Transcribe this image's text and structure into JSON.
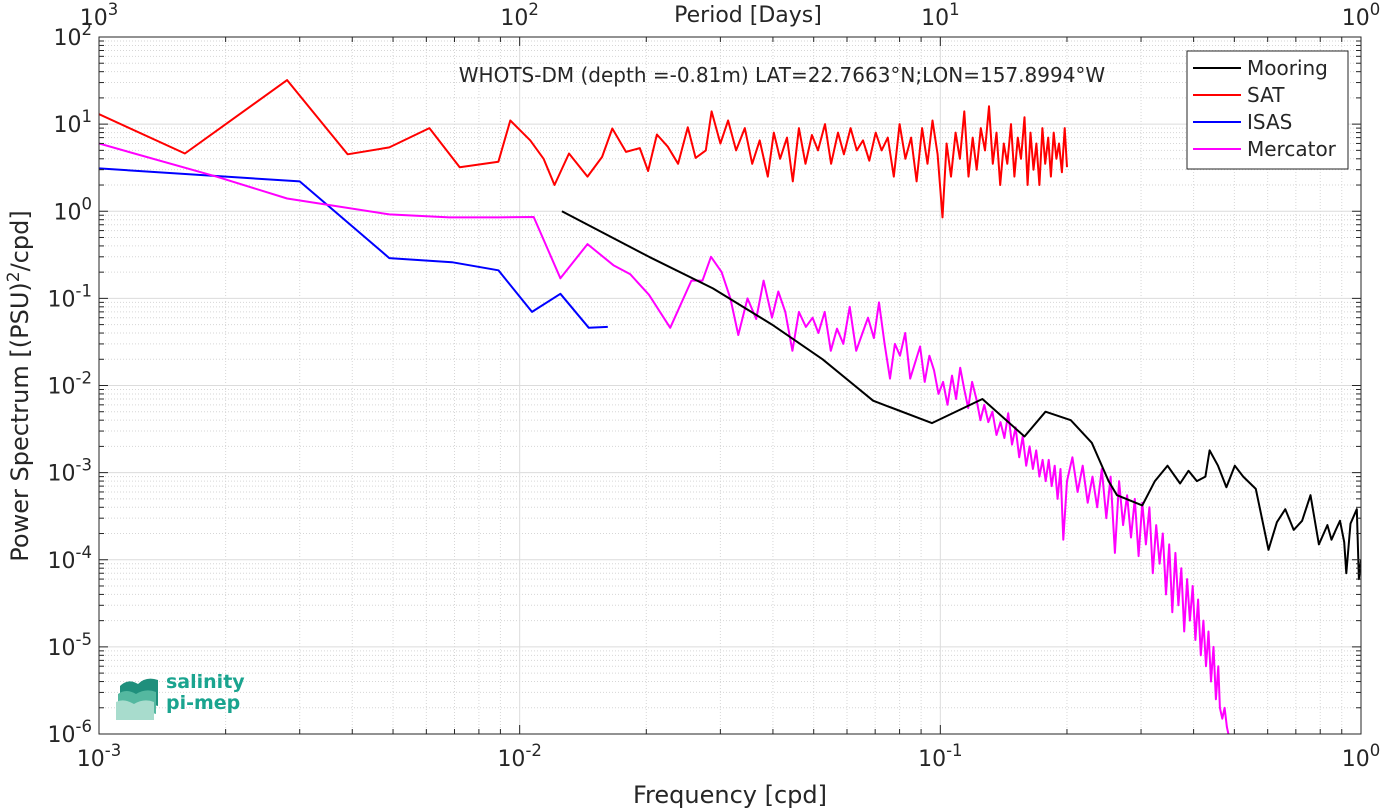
{
  "chart_data": {
    "type": "line",
    "title": "WHOTS-DM (depth =-0.81m) LAT=22.7663°N;LON=157.8994°W",
    "xlabel": "Frequency [cpd]",
    "x2label": "Period [Days]",
    "ylabel": "Power Spectrum [(PSU)²/cpd]",
    "xscale": "log",
    "yscale": "log",
    "xlim": [
      0.001,
      1
    ],
    "ylim": [
      1e-06,
      100
    ],
    "grid": true,
    "legend_position": "top-right",
    "xticks": [
      {
        "base": "10",
        "exp": "-3"
      },
      {
        "base": "10",
        "exp": "-2"
      },
      {
        "base": "10",
        "exp": "-1"
      },
      {
        "base": "10",
        "exp": "0"
      }
    ],
    "x2ticks": [
      {
        "base": "10",
        "exp": "3"
      },
      {
        "base": "10",
        "exp": "2"
      },
      {
        "base": "10",
        "exp": "1"
      },
      {
        "base": "10",
        "exp": "0"
      }
    ],
    "yticks": [
      {
        "base": "10",
        "exp": "-6"
      },
      {
        "base": "10",
        "exp": "-5"
      },
      {
        "base": "10",
        "exp": "-4"
      },
      {
        "base": "10",
        "exp": "-3"
      },
      {
        "base": "10",
        "exp": "-2"
      },
      {
        "base": "10",
        "exp": "-1"
      },
      {
        "base": "10",
        "exp": "0"
      },
      {
        "base": "10",
        "exp": "1"
      },
      {
        "base": "10",
        "exp": "2"
      }
    ],
    "series": [
      {
        "name": "Mooring",
        "color": "#000000",
        "points": [
          [
            0.0126,
            1.0
          ],
          [
            0.0203,
            0.3
          ],
          [
            0.0288,
            0.13
          ],
          [
            0.0398,
            0.05
          ],
          [
            0.0525,
            0.02
          ],
          [
            0.0692,
            0.0067
          ],
          [
            0.0955,
            0.0037
          ],
          [
            0.1259,
            0.007
          ],
          [
            0.1585,
            0.0026
          ],
          [
            0.1778,
            0.005
          ],
          [
            0.2042,
            0.004
          ],
          [
            0.2291,
            0.0022
          ],
          [
            0.2512,
            0.0008
          ],
          [
            0.263,
            0.00055
          ],
          [
            0.302,
            0.00042
          ],
          [
            0.3236,
            0.0008
          ],
          [
            0.3467,
            0.0012
          ],
          [
            0.3715,
            0.00075
          ],
          [
            0.389,
            0.00105
          ],
          [
            0.4074,
            0.0008
          ],
          [
            0.4266,
            0.0009
          ],
          [
            0.4365,
            0.0018
          ],
          [
            0.4571,
            0.0012
          ],
          [
            0.4786,
            0.00068
          ],
          [
            0.5012,
            0.0012
          ],
          [
            0.5248,
            0.0009
          ],
          [
            0.5623,
            0.00065
          ],
          [
            0.6026,
            0.00013
          ],
          [
            0.631,
            0.00027
          ],
          [
            0.6607,
            0.00038
          ],
          [
            0.6918,
            0.00022
          ],
          [
            0.7244,
            0.00028
          ],
          [
            0.7586,
            0.00055
          ],
          [
            0.7943,
            0.00015
          ],
          [
            0.8318,
            0.00025
          ],
          [
            0.8511,
            0.00017
          ],
          [
            0.871,
            0.00022
          ],
          [
            0.8913,
            0.00028
          ],
          [
            0.912,
            0.00016
          ],
          [
            0.9226,
            7e-05
          ],
          [
            0.9441,
            0.00026
          ],
          [
            0.9772,
            0.00038
          ],
          [
            0.9886,
            6e-05
          ],
          [
            1.0,
            0.0001
          ]
        ]
      },
      {
        "name": "SAT",
        "color": "#ff0000",
        "points": [
          [
            0.001,
            13
          ],
          [
            0.0016,
            4.6
          ],
          [
            0.0028,
            32
          ],
          [
            0.0039,
            4.5
          ],
          [
            0.0049,
            5.4
          ],
          [
            0.0061,
            9
          ],
          [
            0.0072,
            3.2
          ],
          [
            0.0089,
            3.7
          ],
          [
            0.0095,
            11
          ],
          [
            0.0106,
            6.5
          ],
          [
            0.0114,
            4
          ],
          [
            0.0121,
            2.0
          ],
          [
            0.0131,
            4.6
          ],
          [
            0.0145,
            2.5
          ],
          [
            0.0157,
            4.2
          ],
          [
            0.0166,
            8.9
          ],
          [
            0.0179,
            4.8
          ],
          [
            0.0193,
            5.3
          ],
          [
            0.0202,
            2.9
          ],
          [
            0.0212,
            7.6
          ],
          [
            0.0225,
            5.5
          ],
          [
            0.0238,
            3.5
          ],
          [
            0.0251,
            9.2
          ],
          [
            0.0262,
            4.1
          ],
          [
            0.0277,
            5
          ],
          [
            0.0286,
            14
          ],
          [
            0.03,
            6
          ],
          [
            0.0313,
            11
          ],
          [
            0.0327,
            5
          ],
          [
            0.0343,
            9
          ],
          [
            0.0357,
            3.5
          ],
          [
            0.0372,
            6.5
          ],
          [
            0.0389,
            2.5
          ],
          [
            0.0402,
            8
          ],
          [
            0.0416,
            4
          ],
          [
            0.0432,
            7
          ],
          [
            0.0446,
            2.2
          ],
          [
            0.0461,
            9
          ],
          [
            0.0478,
            3.5
          ],
          [
            0.0495,
            7.5
          ],
          [
            0.0512,
            5
          ],
          [
            0.0532,
            10
          ],
          [
            0.055,
            3.5
          ],
          [
            0.0571,
            8
          ],
          [
            0.059,
            4.5
          ],
          [
            0.0612,
            9
          ],
          [
            0.0633,
            5
          ],
          [
            0.0655,
            6.5
          ],
          [
            0.0678,
            3.8
          ],
          [
            0.0702,
            8
          ],
          [
            0.0725,
            5
          ],
          [
            0.075,
            7
          ],
          [
            0.0775,
            2.5
          ],
          [
            0.08,
            10
          ],
          [
            0.0826,
            4
          ],
          [
            0.0852,
            7
          ],
          [
            0.0878,
            2.2
          ],
          [
            0.0905,
            9
          ],
          [
            0.0932,
            3.5
          ],
          [
            0.0958,
            11
          ],
          [
            0.0985,
            4.5
          ],
          [
            0.1012,
            0.85
          ],
          [
            0.1035,
            6
          ],
          [
            0.106,
            2.5
          ],
          [
            0.1087,
            8
          ],
          [
            0.1113,
            4
          ],
          [
            0.114,
            14
          ],
          [
            0.1167,
            2.5
          ],
          [
            0.1194,
            7
          ],
          [
            0.122,
            3
          ],
          [
            0.1248,
            9
          ],
          [
            0.1277,
            5
          ],
          [
            0.1305,
            16
          ],
          [
            0.1333,
            3.5
          ],
          [
            0.136,
            8
          ],
          [
            0.1388,
            2
          ],
          [
            0.1415,
            6
          ],
          [
            0.1443,
            3.5
          ],
          [
            0.1472,
            10
          ],
          [
            0.15,
            2.5
          ],
          [
            0.1528,
            7
          ],
          [
            0.1555,
            4
          ],
          [
            0.1585,
            12
          ],
          [
            0.1612,
            2
          ],
          [
            0.1638,
            8
          ],
          [
            0.1665,
            3
          ],
          [
            0.1692,
            6
          ],
          [
            0.172,
            2
          ],
          [
            0.1748,
            9
          ],
          [
            0.1775,
            3.5
          ],
          [
            0.1805,
            7
          ],
          [
            0.1832,
            2.5
          ],
          [
            0.186,
            8
          ],
          [
            0.1888,
            4
          ],
          [
            0.1915,
            6
          ],
          [
            0.1945,
            2.8
          ],
          [
            0.1975,
            9
          ],
          [
            0.2,
            3.2
          ]
        ]
      },
      {
        "name": "ISAS",
        "color": "#0000ff",
        "points": [
          [
            0.001,
            3.1
          ],
          [
            0.003,
            2.2
          ],
          [
            0.0049,
            0.29
          ],
          [
            0.0069,
            0.26
          ],
          [
            0.0089,
            0.21
          ],
          [
            0.0107,
            0.07
          ],
          [
            0.0125,
            0.113
          ],
          [
            0.0146,
            0.046
          ],
          [
            0.0162,
            0.047
          ]
        ]
      },
      {
        "name": "Mercator",
        "color": "#ff00ff",
        "points": [
          [
            0.001,
            6
          ],
          [
            0.0019,
            2.5
          ],
          [
            0.0028,
            1.4
          ],
          [
            0.0049,
            0.92
          ],
          [
            0.0068,
            0.85
          ],
          [
            0.0089,
            0.85
          ],
          [
            0.0108,
            0.86
          ],
          [
            0.0125,
            0.17
          ],
          [
            0.0145,
            0.42
          ],
          [
            0.0167,
            0.24
          ],
          [
            0.0183,
            0.19
          ],
          [
            0.0203,
            0.11
          ],
          [
            0.0228,
            0.046
          ],
          [
            0.0256,
            0.16
          ],
          [
            0.0272,
            0.16
          ],
          [
            0.0285,
            0.3
          ],
          [
            0.0302,
            0.2
          ],
          [
            0.0317,
            0.1
          ],
          [
            0.0331,
            0.038
          ],
          [
            0.0348,
            0.1
          ],
          [
            0.0365,
            0.058
          ],
          [
            0.038,
            0.16
          ],
          [
            0.0398,
            0.06
          ],
          [
            0.0412,
            0.12
          ],
          [
            0.0428,
            0.07
          ],
          [
            0.0445,
            0.025
          ],
          [
            0.0461,
            0.07
          ],
          [
            0.0479,
            0.047
          ],
          [
            0.0497,
            0.06
          ],
          [
            0.0513,
            0.04
          ],
          [
            0.0531,
            0.07
          ],
          [
            0.0549,
            0.025
          ],
          [
            0.0568,
            0.045
          ],
          [
            0.0588,
            0.03
          ],
          [
            0.0609,
            0.08
          ],
          [
            0.0631,
            0.025
          ],
          [
            0.0653,
            0.04
          ],
          [
            0.0673,
            0.06
          ],
          [
            0.0695,
            0.035
          ],
          [
            0.0715,
            0.09
          ],
          [
            0.0737,
            0.03
          ],
          [
            0.0759,
            0.012
          ],
          [
            0.078,
            0.03
          ],
          [
            0.0802,
            0.022
          ],
          [
            0.0825,
            0.04
          ],
          [
            0.0848,
            0.012
          ],
          [
            0.087,
            0.018
          ],
          [
            0.0895,
            0.028
          ],
          [
            0.0918,
            0.011
          ],
          [
            0.0942,
            0.022
          ],
          [
            0.0966,
            0.015
          ],
          [
            0.099,
            0.008
          ],
          [
            0.1015,
            0.011
          ],
          [
            0.104,
            0.006
          ],
          [
            0.1066,
            0.013
          ],
          [
            0.109,
            0.007
          ],
          [
            0.1115,
            0.016
          ],
          [
            0.114,
            0.009
          ],
          [
            0.1165,
            0.0055
          ],
          [
            0.119,
            0.011
          ],
          [
            0.1218,
            0.007
          ],
          [
            0.1245,
            0.004
          ],
          [
            0.1272,
            0.006
          ],
          [
            0.13,
            0.0038
          ],
          [
            0.133,
            0.005
          ],
          [
            0.136,
            0.0027
          ],
          [
            0.139,
            0.0038
          ],
          [
            0.142,
            0.0025
          ],
          [
            0.145,
            0.0048
          ],
          [
            0.148,
            0.0021
          ],
          [
            0.151,
            0.0033
          ],
          [
            0.154,
            0.0015
          ],
          [
            0.157,
            0.0026
          ],
          [
            0.16,
            0.0012
          ],
          [
            0.163,
            0.002
          ],
          [
            0.166,
            0.0011
          ],
          [
            0.169,
            0.0018
          ],
          [
            0.172,
            0.0009
          ],
          [
            0.175,
            0.0014
          ],
          [
            0.178,
            0.0008
          ],
          [
            0.181,
            0.0014
          ],
          [
            0.184,
            0.0007
          ],
          [
            0.187,
            0.0012
          ],
          [
            0.19,
            0.0005
          ],
          [
            0.193,
            0.0011
          ],
          [
            0.196,
            0.00017
          ],
          [
            0.2,
            0.0008
          ],
          [
            0.206,
            0.0015
          ],
          [
            0.212,
            0.0006
          ],
          [
            0.218,
            0.0012
          ],
          [
            0.224,
            0.00045
          ],
          [
            0.23,
            0.0009
          ],
          [
            0.236,
            0.0004
          ],
          [
            0.242,
            0.0011
          ],
          [
            0.248,
            0.0003
          ],
          [
            0.254,
            0.0009
          ],
          [
            0.26,
            0.00012
          ],
          [
            0.266,
            0.0008
          ],
          [
            0.272,
            0.00025
          ],
          [
            0.278,
            0.00055
          ],
          [
            0.284,
            0.00018
          ],
          [
            0.29,
            0.0005
          ],
          [
            0.296,
            0.00011
          ],
          [
            0.302,
            0.00045
          ],
          [
            0.308,
            0.00015
          ],
          [
            0.314,
            0.0004
          ],
          [
            0.32,
            7e-05
          ],
          [
            0.326,
            0.00025
          ],
          [
            0.332,
            9e-05
          ],
          [
            0.338,
            0.0002
          ],
          [
            0.344,
            4e-05
          ],
          [
            0.35,
            0.00015
          ],
          [
            0.356,
            2.5e-05
          ],
          [
            0.362,
            0.00012
          ],
          [
            0.368,
            3e-05
          ],
          [
            0.374,
            8e-05
          ],
          [
            0.38,
            1.5e-05
          ],
          [
            0.386,
            6e-05
          ],
          [
            0.392,
            2e-05
          ],
          [
            0.398,
            5e-05
          ],
          [
            0.404,
            1.2e-05
          ],
          [
            0.41,
            3.5e-05
          ],
          [
            0.416,
            8e-06
          ],
          [
            0.422,
            2e-05
          ],
          [
            0.428,
            6e-06
          ],
          [
            0.434,
            1.5e-05
          ],
          [
            0.44,
            4e-06
          ],
          [
            0.446,
            1e-05
          ],
          [
            0.452,
            2.5e-06
          ],
          [
            0.458,
            6e-06
          ],
          [
            0.462,
            2e-06
          ],
          [
            0.468,
            1.5e-06
          ],
          [
            0.474,
            2e-06
          ],
          [
            0.48,
            1.2e-06
          ],
          [
            0.484,
            1e-06
          ]
        ]
      }
    ]
  },
  "logo": {
    "line1": "salinity",
    "line2": "pi-mep",
    "color": "#1aa48f"
  }
}
